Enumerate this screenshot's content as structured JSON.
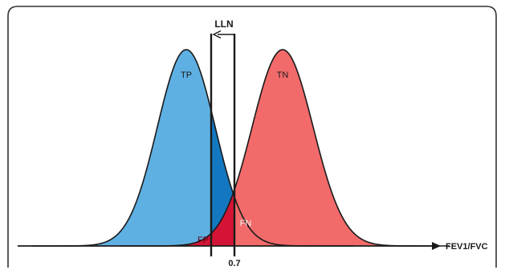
{
  "diagram": {
    "lln_label": "LLN",
    "cutoff_label": "0.7",
    "axis_label": "FEV1/FVC",
    "regions": {
      "tp": "TP",
      "tn": "TN",
      "fn": "FN",
      "fp": "FP"
    },
    "colors": {
      "tp_region": "#5fb0e2",
      "fn_region": "#1478c0",
      "tn_region": "#f26a6a",
      "fp_region": "#d41436",
      "outline": "#1a1a1a",
      "frame": "#333333"
    }
  }
}
